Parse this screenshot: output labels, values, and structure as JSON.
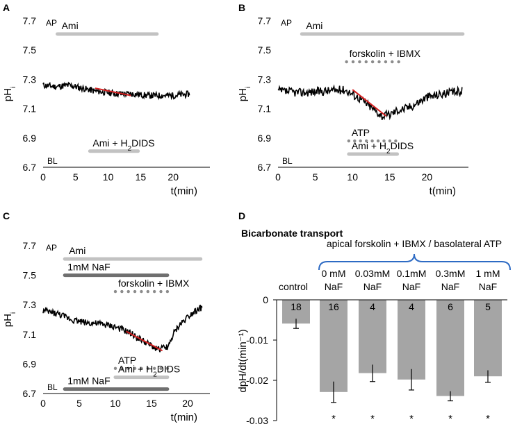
{
  "chart_data": [
    {
      "panel": "A",
      "type": "line",
      "ylabel_main": "pH",
      "ylabel_sub": "i",
      "xlabel": "t(min)",
      "xlim": [
        0,
        25
      ],
      "ylim": [
        6.7,
        7.7
      ],
      "xticks": [
        "0",
        "5",
        "10",
        "15",
        "20"
      ],
      "yticks": [
        "6.7",
        "6.9",
        "7.1",
        "7.3",
        "7.5",
        "7.7"
      ],
      "side_labels": {
        "top": "AP",
        "bottom": "BL"
      },
      "trace": {
        "x": [
          0,
          2,
          4,
          6,
          8,
          10,
          12,
          14,
          16,
          18,
          20,
          22.5
        ],
        "y": [
          7.26,
          7.25,
          7.26,
          7.24,
          7.22,
          7.21,
          7.2,
          7.2,
          7.19,
          7.19,
          7.19,
          7.2
        ],
        "noise": 0.022
      },
      "fit_line": {
        "x": [
          8,
          13.5
        ],
        "y": [
          7.24,
          7.19
        ]
      },
      "bars": [
        {
          "label": "Ami",
          "start": 2.2,
          "end": 17.5,
          "y": 7.61,
          "style": "solid",
          "tone": "light",
          "label_pos": "above"
        },
        {
          "label_main": "Ami + H",
          "label_sub": "2",
          "label_tail": "DIDS",
          "start": 7.2,
          "end": 14.6,
          "y": 6.81,
          "style": "solid",
          "tone": "light",
          "label_pos": "above"
        }
      ]
    },
    {
      "panel": "B",
      "type": "line",
      "ylabel_main": "pH",
      "ylabel_sub": "i",
      "xlabel": "t(min)",
      "xlim": [
        0,
        25
      ],
      "ylim": [
        6.7,
        7.7
      ],
      "xticks": [
        "0",
        "5",
        "10",
        "15",
        "20"
      ],
      "yticks": [
        "6.7",
        "6.9",
        "7.1",
        "7.3",
        "7.5",
        "7.7"
      ],
      "side_labels": {
        "top": "AP",
        "bottom": "BL"
      },
      "trace": {
        "x": [
          0,
          3,
          6,
          9,
          10,
          11,
          12,
          13,
          14,
          15,
          16,
          17,
          18,
          19,
          20,
          22,
          24.7
        ],
        "y": [
          7.22,
          7.21,
          7.22,
          7.23,
          7.2,
          7.17,
          7.13,
          7.09,
          7.05,
          7.06,
          7.09,
          7.1,
          7.12,
          7.15,
          7.18,
          7.2,
          7.22
        ],
        "noise": 0.03
      },
      "fit_line": {
        "x": [
          10,
          14.5
        ],
        "y": [
          7.23,
          7.05
        ]
      },
      "bars": [
        {
          "label": "Ami",
          "start": 3.2,
          "end": 24.8,
          "y": 7.61,
          "style": "solid",
          "tone": "light",
          "label_pos": "above"
        },
        {
          "label": "forskolin + IBMX",
          "start": 9.2,
          "end": 16.2,
          "y": 7.42,
          "style": "dotted",
          "tone": "mid",
          "label_pos": "above"
        },
        {
          "label": "ATP",
          "start": 9.5,
          "end": 15.8,
          "y": 6.88,
          "style": "dotted",
          "tone": "mid",
          "label_pos": "above"
        },
        {
          "label_main": "Ami + H",
          "label_sub": "2",
          "label_tail": "DIDS",
          "start": 9.5,
          "end": 16.0,
          "y": 6.79,
          "style": "solid",
          "tone": "light",
          "label_pos": "above"
        }
      ]
    },
    {
      "panel": "C",
      "type": "line",
      "ylabel_main": "pH",
      "ylabel_sub": "i",
      "xlabel": "t(min)",
      "xlim": [
        0,
        22.5
      ],
      "ylim": [
        6.7,
        7.7
      ],
      "xticks": [
        "0",
        "5",
        "10",
        "15",
        "20"
      ],
      "yticks": [
        "6.7",
        "6.9",
        "7.1",
        "7.3",
        "7.5",
        "7.7"
      ],
      "side_labels": {
        "top": "AP",
        "bottom": "BL"
      },
      "trace": {
        "x": [
          0,
          2,
          4,
          6,
          8,
          10,
          11,
          12,
          13,
          14,
          15,
          16,
          17,
          17.5,
          18,
          19,
          20,
          21,
          22
        ],
        "y": [
          7.26,
          7.24,
          7.2,
          7.18,
          7.17,
          7.15,
          7.13,
          7.11,
          7.08,
          7.05,
          7.02,
          7.0,
          7.01,
          7.03,
          7.1,
          7.17,
          7.22,
          7.26,
          7.28
        ],
        "noise": 0.022
      },
      "fit_line": {
        "x": [
          11.5,
          16.5
        ],
        "y": [
          7.12,
          6.99
        ]
      },
      "bars": [
        {
          "label": "Ami",
          "start": 3.0,
          "end": 21.8,
          "y": 7.61,
          "style": "solid",
          "tone": "light",
          "label_pos": "above"
        },
        {
          "label": "1mM NaF",
          "start": 3.0,
          "end": 17.2,
          "y": 7.5,
          "style": "solid",
          "tone": "dark",
          "label_pos": "above"
        },
        {
          "label": "forskolin + IBMX",
          "start": 10.0,
          "end": 17.2,
          "y": 7.39,
          "style": "dotted",
          "tone": "mid",
          "label_pos": "above"
        },
        {
          "label": "ATP",
          "start": 10.0,
          "end": 17.2,
          "y": 6.87,
          "style": "dotted",
          "tone": "mid",
          "label_pos": "above"
        },
        {
          "label_main": "Ami + H",
          "label_sub": "2",
          "label_tail": "DIDS",
          "start": 10.0,
          "end": 17.2,
          "y": 6.81,
          "style": "solid",
          "tone": "light",
          "label_pos": "above"
        },
        {
          "label": "1mM NaF",
          "start": 3.0,
          "end": 17.2,
          "y": 6.73,
          "style": "solid",
          "tone": "dark",
          "label_pos": "above"
        }
      ]
    },
    {
      "panel": "D",
      "type": "bar",
      "title": "Bicarbonate transport",
      "group_label": "apical forskolin + IBMX / basolateral ATP",
      "ylabel": "dpH/dt(min⁻¹)",
      "ylim": [
        -0.03,
        0
      ],
      "yticks": [
        "0",
        "-0.01",
        "-0.02",
        "-0.03"
      ],
      "categories": [
        {
          "line1": "control",
          "line2": ""
        },
        {
          "line1": "0 mM",
          "line2": "NaF"
        },
        {
          "line1": "0.03mM",
          "line2": "NaF"
        },
        {
          "line1": "0.1mM",
          "line2": "NaF"
        },
        {
          "line1": "0.3mM",
          "line2": "NaF"
        },
        {
          "line1": "1 mM",
          "line2": "NaF"
        }
      ],
      "values": [
        -0.0059,
        -0.0229,
        -0.0182,
        -0.0198,
        -0.0239,
        -0.019
      ],
      "errors": [
        0.0012,
        0.0026,
        0.0021,
        0.0026,
        0.0012,
        0.0015
      ],
      "n": [
        "18",
        "16",
        "4",
        "4",
        "6",
        "5"
      ],
      "significance": [
        "",
        "*",
        "*",
        "*",
        "*",
        "*"
      ]
    }
  ]
}
